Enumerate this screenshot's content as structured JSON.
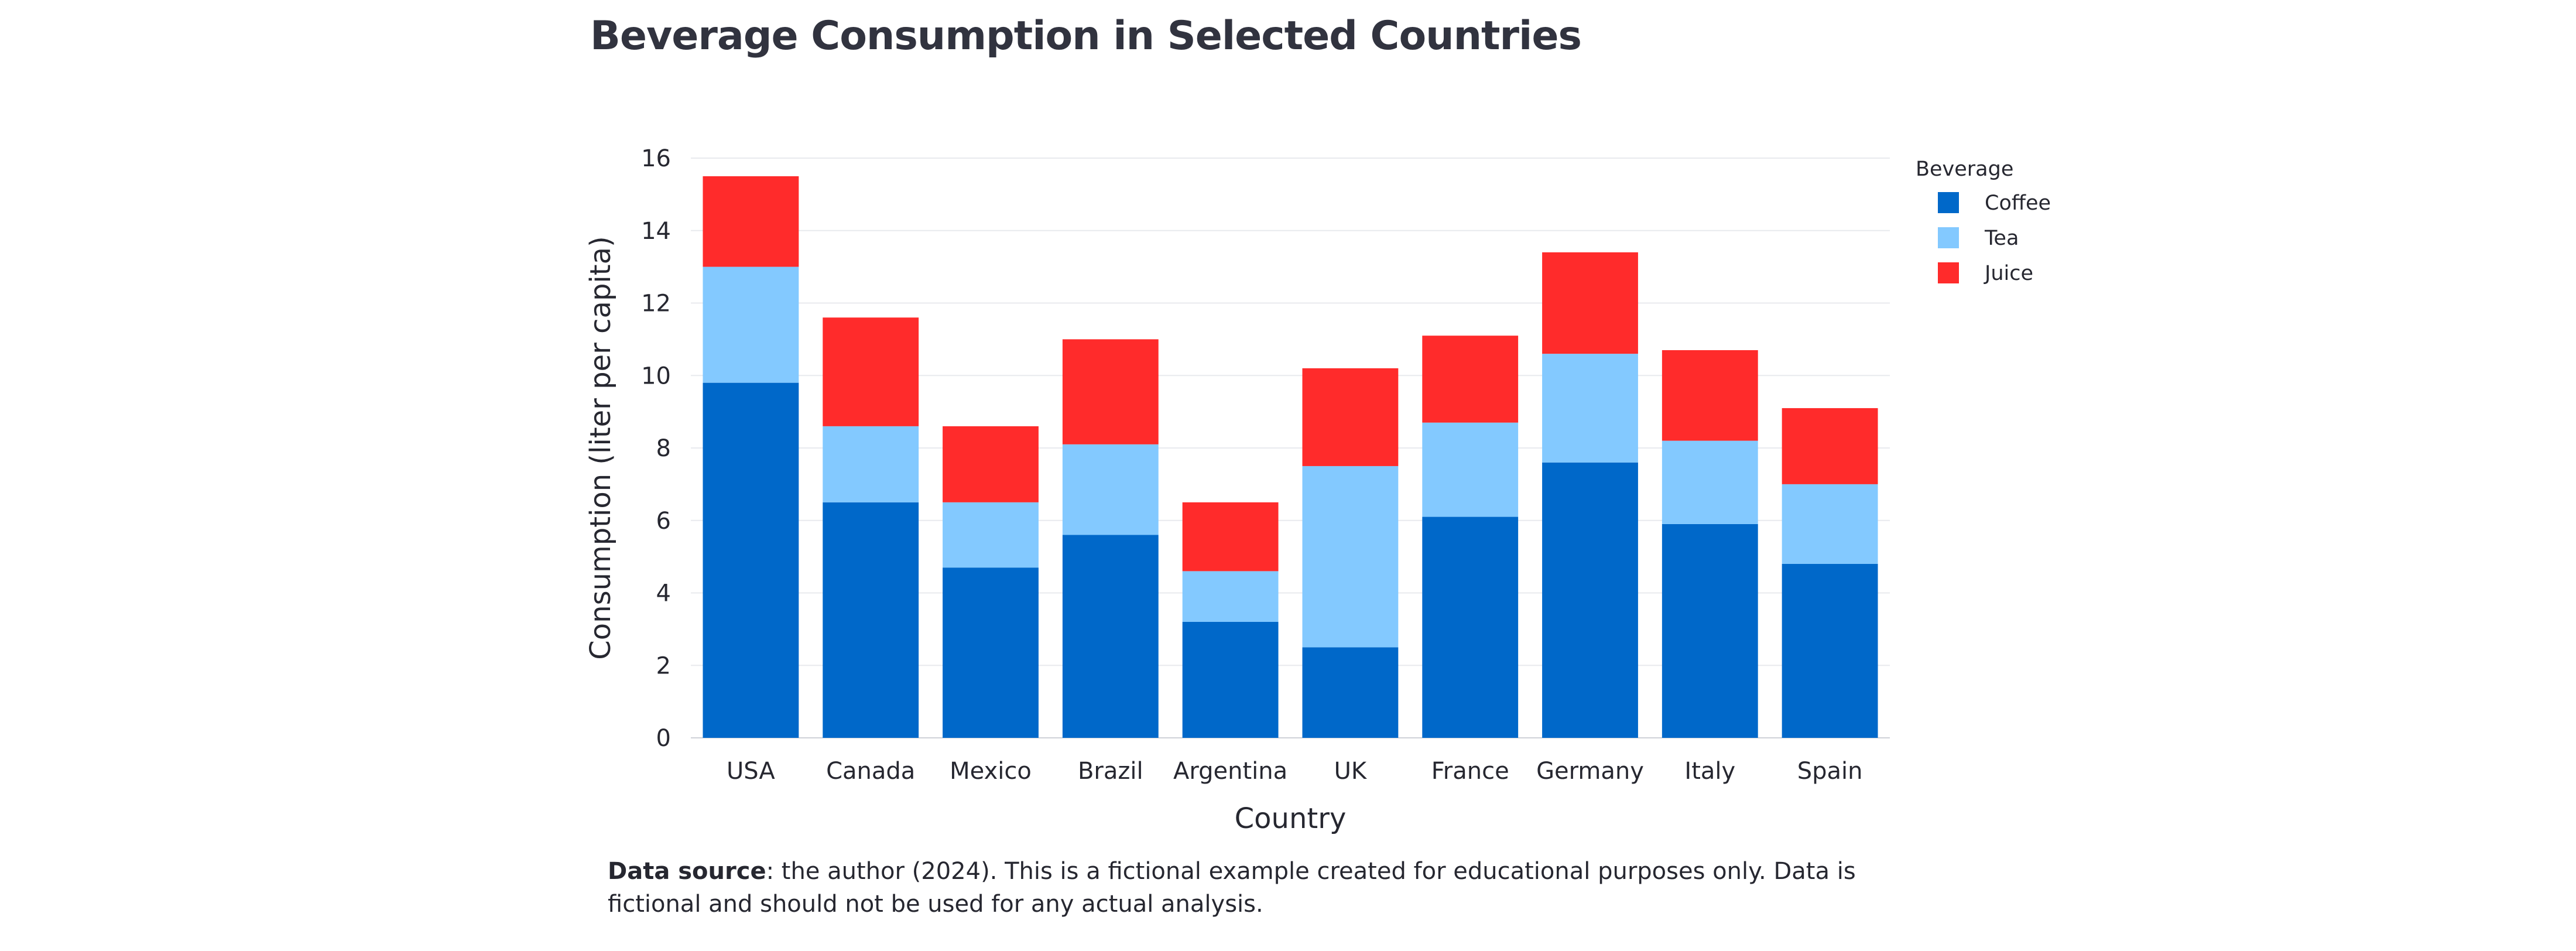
{
  "chart_data": {
    "type": "bar",
    "stacked": true,
    "title": "Beverage Consumption in Selected Countries",
    "xlabel": "Country",
    "ylabel": "Consumption (liter per capita)",
    "categories": [
      "USA",
      "Canada",
      "Mexico",
      "Brazil",
      "Argentina",
      "UK",
      "France",
      "Germany",
      "Italy",
      "Spain"
    ],
    "series": [
      {
        "name": "Coffee",
        "color": "#0068c9",
        "values": [
          9.8,
          6.5,
          4.7,
          5.6,
          3.2,
          2.5,
          6.1,
          7.6,
          5.9,
          4.8
        ]
      },
      {
        "name": "Tea",
        "color": "#83c9ff",
        "values": [
          3.2,
          2.1,
          1.8,
          2.5,
          1.4,
          5.0,
          2.6,
          3.0,
          2.3,
          2.2
        ]
      },
      {
        "name": "Juice",
        "color": "#ff2b2b",
        "values": [
          2.5,
          3.0,
          2.1,
          2.9,
          1.9,
          2.7,
          2.4,
          2.8,
          2.5,
          2.1
        ]
      }
    ],
    "ylim": [
      0,
      16
    ],
    "yticks": [
      0,
      2,
      4,
      6,
      8,
      10,
      12,
      14,
      16
    ],
    "grid": true,
    "legend": {
      "title": "Beverage",
      "position": "top-right"
    }
  },
  "caption": {
    "source_label": "Data source",
    "text": ": the author (2024). This is a fictional example created for educational purposes only. Data is fictional and should not be used for any actual analysis."
  }
}
